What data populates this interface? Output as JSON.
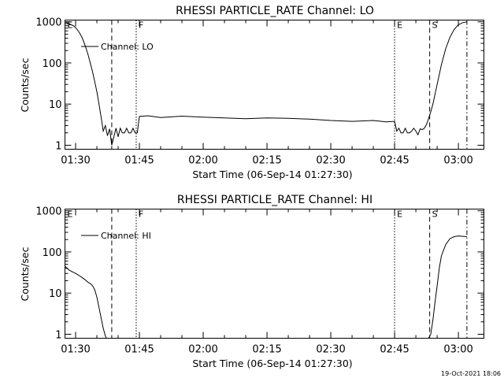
{
  "footer": {
    "timestamp": "19-Oct-2021 18:06"
  },
  "chart_data": [
    {
      "type": "line",
      "title": "RHESSI PARTICLE_RATE Channel: LO",
      "xlabel": "Start Time (06-Sep-14 01:27:30)",
      "ylabel": "Counts/sec",
      "yscale": "log",
      "ylim": [
        0.8,
        1100
      ],
      "xlim_minutes_from_start": [
        0,
        98.5
      ],
      "xticks": [
        "01:30",
        "01:45",
        "02:00",
        "02:15",
        "02:30",
        "02:45",
        "03:00"
      ],
      "yticks": [
        "1",
        "10",
        "100",
        "1000"
      ],
      "legend": {
        "placement": "top-left",
        "entries": [
          "Channel: LO"
        ]
      },
      "event_markers": [
        {
          "label": "E",
          "time": "01:27:30",
          "style": "none"
        },
        {
          "label": "",
          "time": "01:38:30",
          "style": "dashed"
        },
        {
          "label": "F",
          "time": "01:44:15",
          "style": "dotted"
        },
        {
          "label": "E",
          "time": "02:45:00",
          "style": "dotted"
        },
        {
          "label": "S",
          "time": "02:53:15",
          "style": "dashed"
        },
        {
          "label": "",
          "time": "03:02:00",
          "style": "dashdot"
        }
      ],
      "series": [
        {
          "name": "Channel: LO",
          "x": [
            "01:27:30",
            "01:28:00",
            "01:28:30",
            "01:29:00",
            "01:29:30",
            "01:30:00",
            "01:30:30",
            "01:31:00",
            "01:31:30",
            "01:32:00",
            "01:32:30",
            "01:33:00",
            "01:33:30",
            "01:34:00",
            "01:34:30",
            "01:35:00",
            "01:35:30",
            "01:36:00",
            "01:36:30",
            "01:37:00",
            "01:37:30",
            "01:38:00",
            "01:38:30",
            "01:39:00",
            "01:39:30",
            "01:40:00",
            "01:40:30",
            "01:41:00",
            "01:41:30",
            "01:42:00",
            "01:42:30",
            "01:43:00",
            "01:43:30",
            "01:44:00",
            "01:44:30",
            "01:45:00",
            "01:47:00",
            "01:50:00",
            "01:55:00",
            "02:00:00",
            "02:05:00",
            "02:10:00",
            "02:15:00",
            "02:20:00",
            "02:25:00",
            "02:30:00",
            "02:35:00",
            "02:40:00",
            "02:43:00",
            "02:45:00",
            "02:45:30",
            "02:46:00",
            "02:46:30",
            "02:47:00",
            "02:47:30",
            "02:48:00",
            "02:48:30",
            "02:49:00",
            "02:49:30",
            "02:50:00",
            "02:50:30",
            "02:51:00",
            "02:51:30",
            "02:52:00",
            "02:52:30",
            "02:53:00",
            "02:53:30",
            "02:54:00",
            "02:55:00",
            "02:56:00",
            "02:57:00",
            "02:58:00",
            "02:59:00",
            "03:00:00",
            "03:01:00",
            "03:02:00"
          ],
          "values": [
            1000,
            950,
            900,
            850,
            800,
            720,
            620,
            520,
            420,
            310,
            220,
            150,
            95,
            60,
            35,
            20,
            10,
            4.8,
            2.2,
            3,
            1.7,
            2.5,
            1,
            1.6,
            2.6,
            1.6,
            2.6,
            2,
            2,
            2.6,
            2,
            2,
            2.6,
            2,
            2,
            5,
            5.2,
            4.7,
            5.1,
            4.8,
            4.6,
            4.4,
            4.6,
            4.5,
            4.3,
            4,
            3.8,
            4,
            3.7,
            3.8,
            2.2,
            2.6,
            2,
            2,
            2.6,
            2,
            2,
            2.2,
            2.6,
            2.2,
            1.8,
            2.5,
            2.4,
            2.6,
            3.2,
            4.5,
            6.5,
            10,
            30,
            90,
            220,
            420,
            650,
            850,
            950,
            1000
          ]
        }
      ]
    },
    {
      "type": "line",
      "title": "RHESSI PARTICLE_RATE Channel: HI",
      "xlabel": "Start Time (06-Sep-14 01:27:30)",
      "ylabel": "Counts/sec",
      "yscale": "log",
      "ylim": [
        0.8,
        1100
      ],
      "xlim_minutes_from_start": [
        0,
        98.5
      ],
      "xticks": [
        "01:30",
        "01:45",
        "02:00",
        "02:15",
        "02:30",
        "02:45",
        "03:00"
      ],
      "yticks": [
        "1",
        "10",
        "100",
        "1000"
      ],
      "legend": {
        "placement": "top-left",
        "entries": [
          "Channel: HI"
        ]
      },
      "event_markers": [
        {
          "label": "E",
          "time": "01:27:30",
          "style": "none"
        },
        {
          "label": "",
          "time": "01:38:30",
          "style": "dashed"
        },
        {
          "label": "F",
          "time": "01:44:15",
          "style": "dotted"
        },
        {
          "label": "E",
          "time": "02:45:00",
          "style": "dotted"
        },
        {
          "label": "S",
          "time": "02:53:15",
          "style": "dashed"
        },
        {
          "label": "",
          "time": "03:02:00",
          "style": "dashdot"
        }
      ],
      "series": [
        {
          "name": "Channel: HI",
          "x": [
            "01:27:30",
            "01:28:00",
            "01:28:30",
            "01:29:00",
            "01:29:30",
            "01:30:00",
            "01:30:30",
            "01:31:00",
            "01:31:30",
            "01:32:00",
            "01:32:30",
            "01:33:00",
            "01:33:30",
            "01:34:00",
            "01:34:30",
            "01:35:00",
            "01:35:30",
            "01:36:00",
            "01:36:30",
            "01:37:00",
            "01:37:15",
            "02:53:00",
            "02:53:30",
            "02:54:00",
            "02:54:30",
            "02:55:00",
            "02:55:30",
            "02:56:00",
            "02:57:00",
            "02:58:00",
            "02:59:00",
            "03:00:00",
            "03:01:00",
            "03:02:00"
          ],
          "values": [
            45,
            40,
            36,
            34,
            32,
            30,
            28,
            26,
            24,
            22,
            20,
            18,
            17,
            15,
            12,
            8,
            4.5,
            2.5,
            1.4,
            0.9,
            0.8,
            0.8,
            1,
            2.2,
            6,
            15,
            40,
            80,
            150,
            210,
            235,
            245,
            240,
            235
          ]
        }
      ]
    }
  ]
}
